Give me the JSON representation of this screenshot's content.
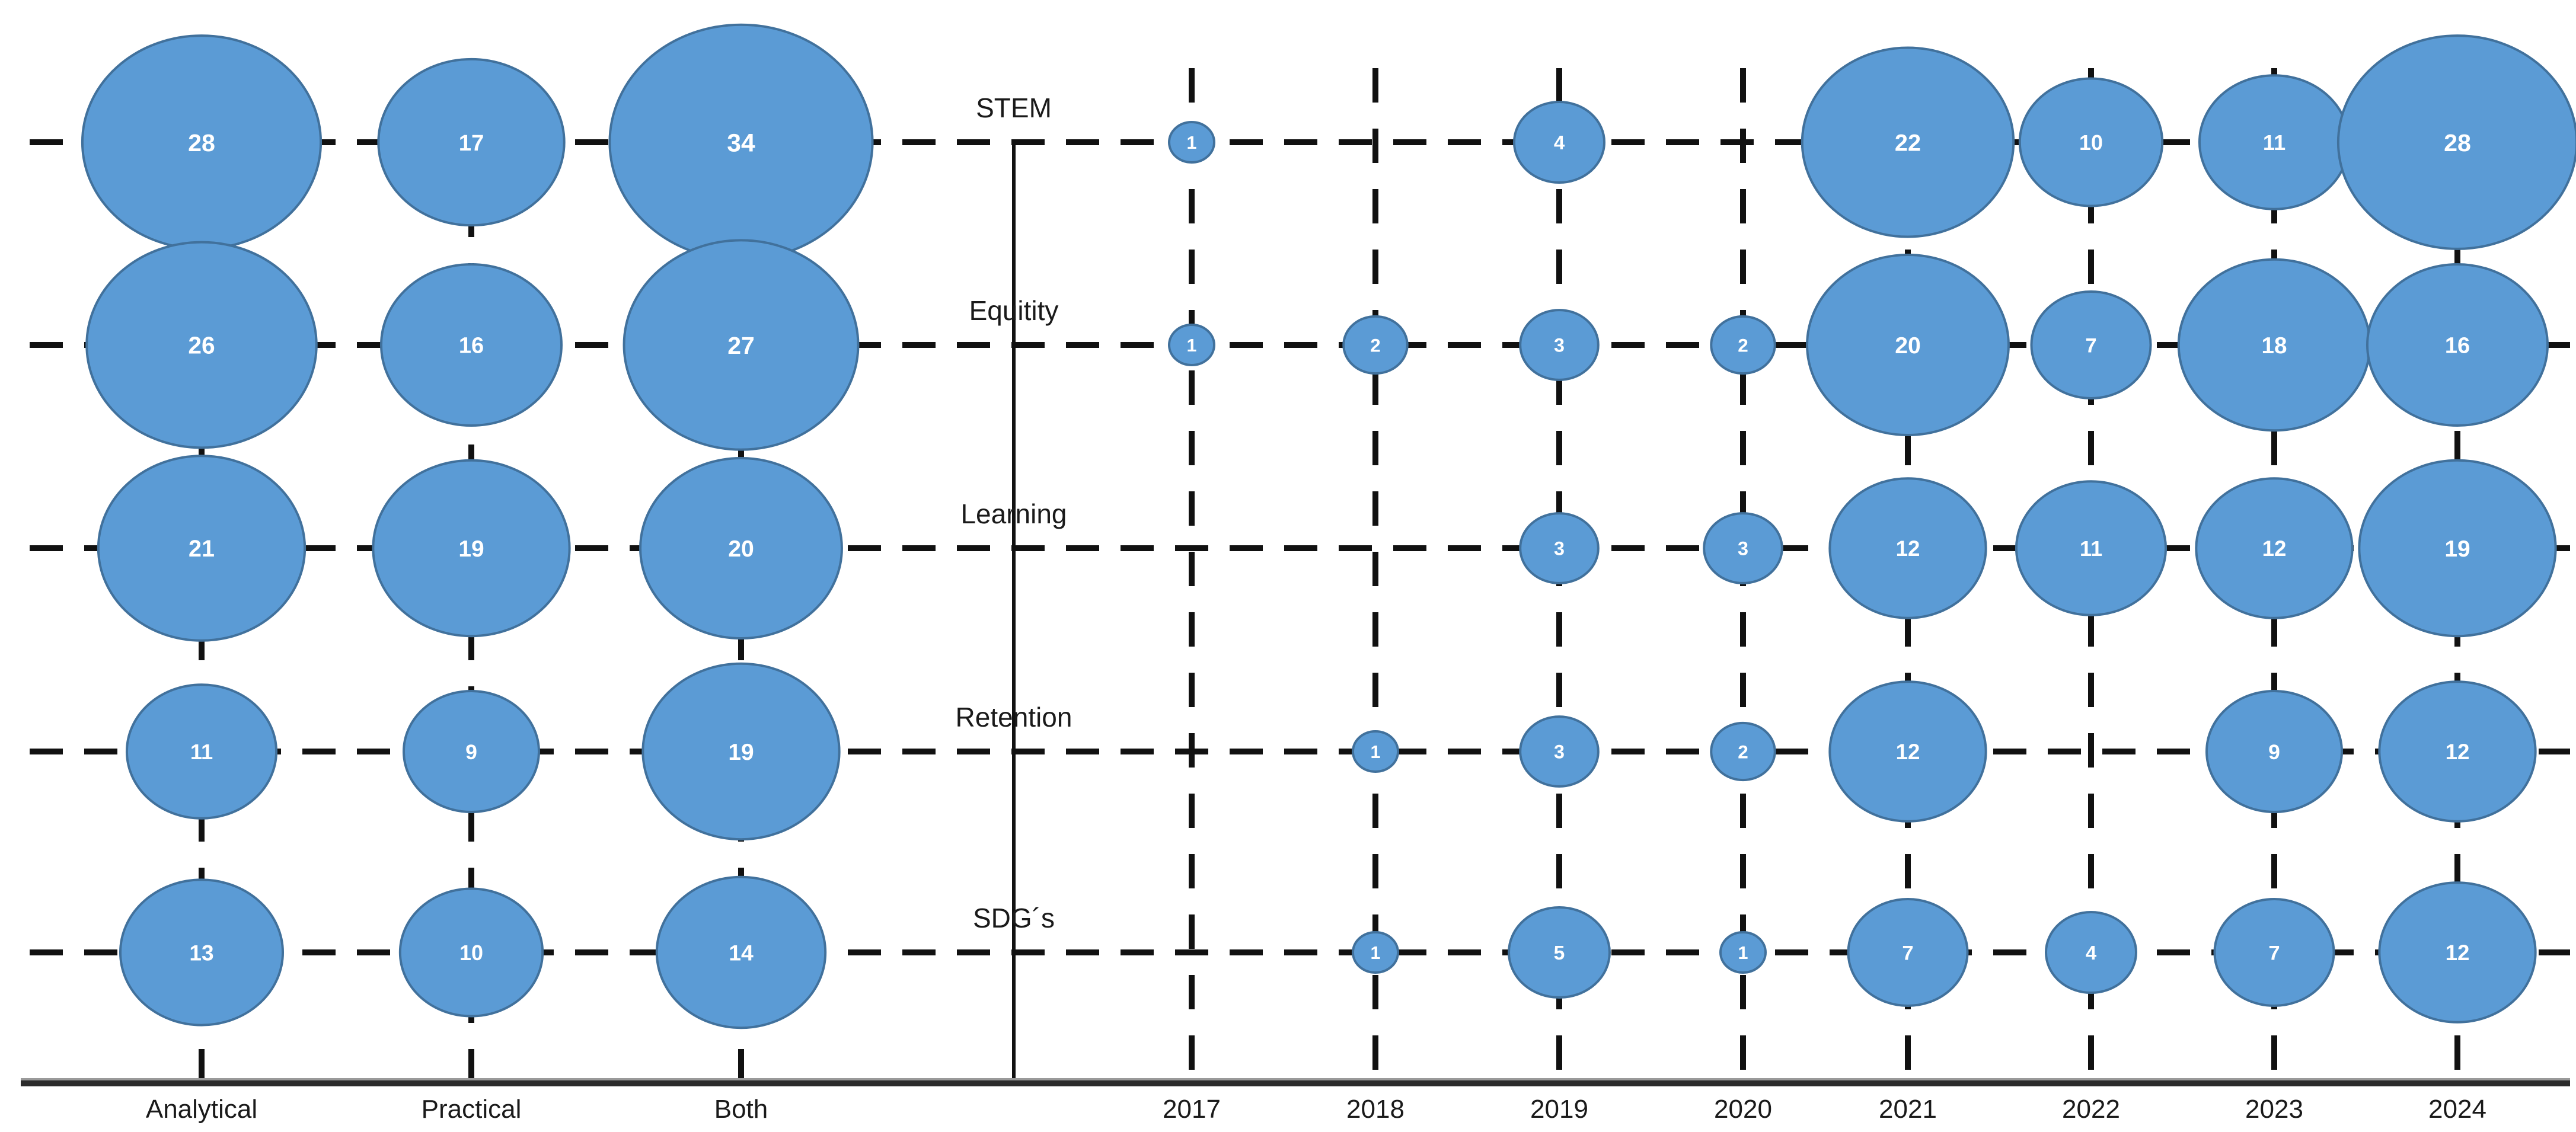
{
  "chart_data": {
    "type": "bubble",
    "title": "",
    "description": "Two-panel bubble matrix: counts per theme by approach (left) and by publication year (right)",
    "rows": [
      "STEM",
      "Equitity",
      "Learning",
      "Retention",
      "SDG´s"
    ],
    "left_panel": {
      "categories": [
        "Analytical",
        "Practical",
        "Both"
      ],
      "values": [
        [
          28,
          17,
          34
        ],
        [
          26,
          16,
          27
        ],
        [
          21,
          19,
          20
        ],
        [
          11,
          9,
          19
        ],
        [
          13,
          10,
          14
        ]
      ]
    },
    "right_panel": {
      "categories": [
        "2017",
        "2018",
        "2019",
        "2020",
        "2021",
        "2022",
        "2023",
        "2024"
      ],
      "values": [
        [
          1,
          null,
          4,
          null,
          22,
          10,
          11,
          28
        ],
        [
          1,
          2,
          3,
          2,
          20,
          7,
          18,
          16
        ],
        [
          null,
          null,
          3,
          3,
          12,
          11,
          12,
          19
        ],
        [
          null,
          1,
          3,
          2,
          12,
          null,
          9,
          12
        ],
        [
          null,
          1,
          5,
          1,
          7,
          4,
          7,
          12
        ]
      ]
    },
    "style": {
      "bubble_fill": "#5B9BD5",
      "bubble_stroke": "#41719C",
      "value_text_color": "#FFFFFF",
      "grid_line_color": "#111111",
      "axis_line_color": "#2B2B2B",
      "axis_highlight_color": "#9A9A9A",
      "label_color": "#1A1A1A",
      "gridlines": "dashed",
      "legend": "none"
    }
  }
}
